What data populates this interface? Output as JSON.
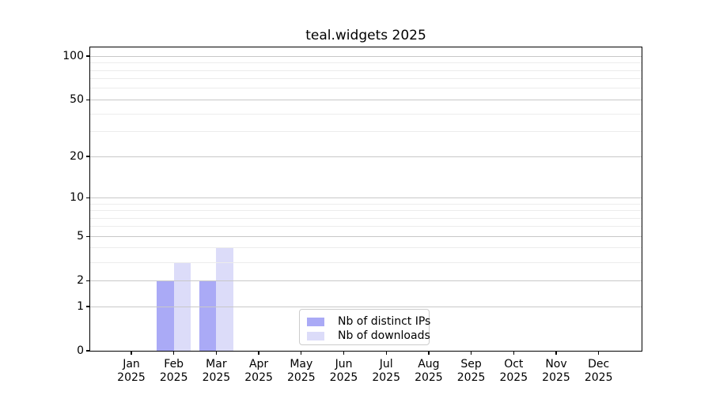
{
  "figure": {
    "title": "teal.widgets 2025",
    "background": "#ffffff"
  },
  "chart_data": {
    "type": "bar",
    "title": "teal.widgets 2025",
    "x": {
      "categories": [
        "Jan",
        "Feb",
        "Mar",
        "Apr",
        "May",
        "Jun",
        "Jul",
        "Aug",
        "Sep",
        "Oct",
        "Nov",
        "Dec"
      ],
      "year": "2025"
    },
    "series": [
      {
        "name": "Nb of distinct IPs",
        "color": "#aaaaf6",
        "values": [
          0,
          2,
          2,
          0,
          0,
          0,
          0,
          0,
          0,
          0,
          0,
          0
        ]
      },
      {
        "name": "Nb of downloads",
        "color": "#dcdcf9",
        "values": [
          0,
          3,
          4,
          0,
          0,
          0,
          0,
          0,
          0,
          0,
          0,
          0
        ]
      }
    ],
    "y_axis": {
      "scale": "log1p",
      "tick_values": [
        0,
        1,
        2,
        5,
        10,
        20,
        50,
        100
      ],
      "minor_gridline_values": [
        3,
        4,
        6,
        7,
        8,
        9,
        30,
        40,
        60,
        70,
        80,
        90
      ],
      "ylim": [
        0,
        115
      ]
    },
    "grid": true,
    "legend_position": "inside-bottom-center"
  },
  "legend": {
    "items": [
      {
        "label": "Nb of distinct IPs",
        "color": "#aaaaf6"
      },
      {
        "label": "Nb of downloads",
        "color": "#dcdcf9"
      }
    ]
  },
  "colors": {
    "bar_dark": "#aaaaf6",
    "bar_light": "#dcdcf9",
    "grid_major": "#c8c8c8",
    "grid_minor": "#ececec",
    "frame": "#000000",
    "text": "#000000",
    "legend_border": "#cccccc"
  }
}
